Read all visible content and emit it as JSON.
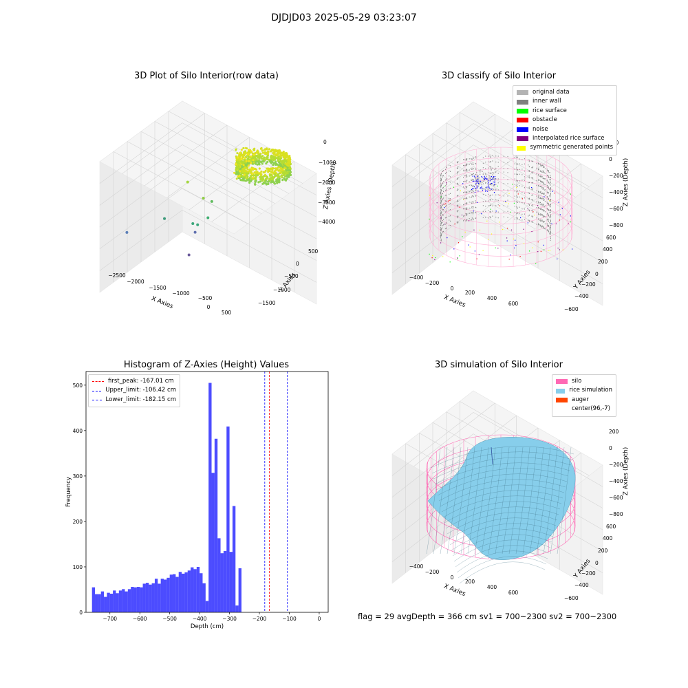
{
  "figure": {
    "suptitle": "DJDJD03 2025-05-29 03:23:07",
    "footer": "flag = 29  avgDepth = 366 cm  sv1 = 700~2300  sv2 = 700~2300"
  },
  "chart_data": [
    {
      "type": "scatter",
      "title": "3D Plot of Silo Interior(row data)",
      "projection": "3d",
      "xlabel": "X Axies",
      "ylabel": "Y Axies",
      "zlabel": "Z Axies (Depth)",
      "xticks": [
        -2500,
        -2000,
        -1500,
        -1000,
        -500,
        0,
        500
      ],
      "yticks": [
        500,
        0,
        -500,
        -1000,
        -1500
      ],
      "zticks": [
        0,
        -1000,
        -2000,
        -3000,
        -4000
      ],
      "colormap": "viridis",
      "outliers": [
        {
          "x": -2600,
          "y": 0,
          "z": -3600,
          "color": "#5b7fb8"
        },
        {
          "x": -1100,
          "y": -1300,
          "z": -4300,
          "color": "#6a5a9a"
        },
        {
          "x": -900,
          "y": -1100,
          "z": -3300,
          "color": "#5f6fae"
        },
        {
          "x": -1600,
          "y": -200,
          "z": -2900,
          "color": "#3d9a7a"
        },
        {
          "x": -900,
          "y": -700,
          "z": -3000,
          "color": "#3aa67a"
        },
        {
          "x": -800,
          "y": -900,
          "z": -3000,
          "color": "#3aa67a"
        },
        {
          "x": -500,
          "y": -800,
          "z": -2700,
          "color": "#3fae70"
        },
        {
          "x": -300,
          "y": -200,
          "z": -2100,
          "color": "#60bb5e"
        },
        {
          "x": -500,
          "y": 0,
          "z": -2000,
          "color": "#8fcf44"
        },
        {
          "x": -900,
          "y": 200,
          "z": -1300,
          "color": "#a3d63d"
        }
      ]
    },
    {
      "type": "scatter",
      "title": "3D classify of Silo Interior",
      "projection": "3d",
      "xlabel": "X Axies",
      "ylabel": "Y Axies",
      "zlabel": "Z Axies (Depth)",
      "xticks": [
        -400,
        -200,
        0,
        200,
        400,
        600
      ],
      "yticks": [
        600,
        400,
        200,
        0,
        -200,
        -400,
        -600
      ],
      "zticks": [
        200,
        0,
        -200,
        -400,
        -600,
        -800
      ],
      "legend": [
        {
          "label": "original data",
          "color": "#b3b3b3"
        },
        {
          "label": "inner wall",
          "color": "#808080"
        },
        {
          "label": "rice surface",
          "color": "#00ff00"
        },
        {
          "label": "obstacle",
          "color": "#ff0000"
        },
        {
          "label": "noise",
          "color": "#0000ff"
        },
        {
          "label": "interpolated rice surface",
          "color": "#800080"
        },
        {
          "label": "symmetric generated points",
          "color": "#ffff00"
        }
      ],
      "legend_loc": "upper right",
      "silo_color": "#ff69b4"
    },
    {
      "type": "bar",
      "title": "Histogram of Z-Axies (Height) Values",
      "xlabel": "Depth (cm)",
      "ylabel": "Frequency",
      "bar_color": "#0000ff",
      "bin_width": 10,
      "x_start": -760,
      "values": [
        55,
        40,
        40,
        46,
        34,
        43,
        41,
        48,
        42,
        48,
        51,
        46,
        51,
        56,
        55,
        56,
        55,
        63,
        65,
        61,
        64,
        74,
        63,
        74,
        72,
        76,
        83,
        84,
        78,
        89,
        85,
        88,
        92,
        99,
        95,
        100,
        86,
        64,
        25,
        505,
        307,
        382,
        163,
        130,
        135,
        409,
        133,
        234,
        15,
        97
      ],
      "xlim": [
        -780,
        30
      ],
      "ylim": [
        0,
        530
      ],
      "xticks": [
        -700,
        -600,
        -500,
        -400,
        -300,
        -200,
        -100,
        0
      ],
      "xticklabels": [
        "−700",
        "−600",
        "−500",
        "−400",
        "−300",
        "−200",
        "−100",
        "0"
      ],
      "yticks": [
        0,
        100,
        200,
        300,
        400,
        500
      ],
      "vlines": [
        {
          "label": "first_peak: -167.01 cm",
          "x": -167.01,
          "color": "#ff0000"
        },
        {
          "label": "Upper_limit: -106.42 cm",
          "x": -106.42,
          "color": "#0000ff"
        },
        {
          "label": "Lower_limit: -182.15 cm",
          "x": -182.15,
          "color": "#0000ff"
        }
      ],
      "legend_loc": "upper left"
    },
    {
      "type": "area",
      "title": "3D simulation of Silo Interior",
      "projection": "3d",
      "xlabel": "X Axies",
      "ylabel": "Y Axies",
      "zlabel": "Z Axies (Depth)",
      "xticks": [
        -400,
        -200,
        0,
        200,
        400,
        600
      ],
      "yticks": [
        600,
        400,
        200,
        0,
        -200,
        -400,
        -600
      ],
      "zticks": [
        200,
        0,
        -200,
        -400,
        -600,
        -800
      ],
      "legend": [
        {
          "label": "silo",
          "color": "#ff69b4"
        },
        {
          "label": "rice simulation",
          "color": "#87ceeb"
        },
        {
          "label": "auger",
          "color": "#ff4500"
        },
        {
          "label": "center(96,-7)",
          "color": "#ffffff"
        }
      ],
      "legend_loc": "upper right"
    }
  ]
}
